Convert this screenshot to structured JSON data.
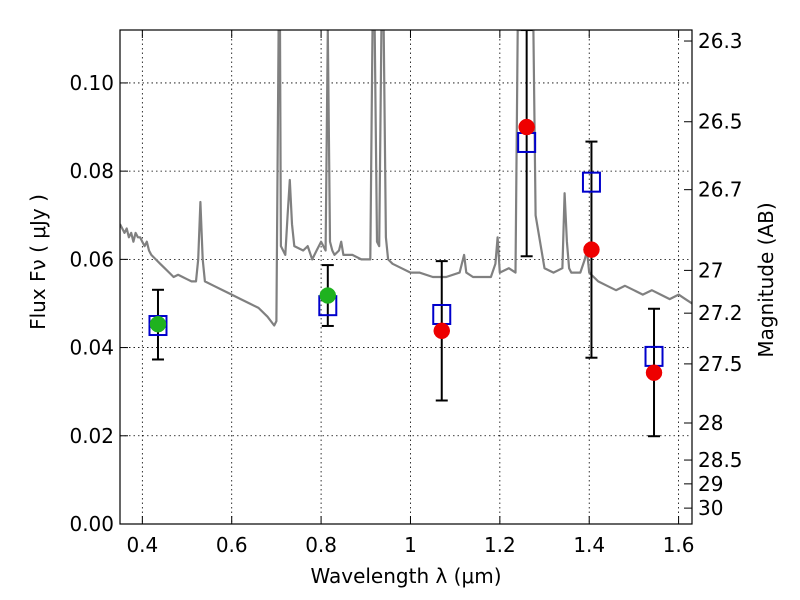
{
  "chart_data": {
    "type": "scatter",
    "title": "",
    "xlabel": "Wavelength  λ (μm)",
    "ylabel": "Flux  Fν  ( μJy )",
    "ylabel_right": "Magnitude (AB)",
    "xlim": [
      0.35,
      1.63
    ],
    "ylim": [
      0.0,
      0.112
    ],
    "grid": true,
    "x_ticks": [
      0.4,
      0.6,
      0.8,
      1.0,
      1.2,
      1.4,
      1.6
    ],
    "x_tick_labels": [
      "0.4",
      "0.6",
      "0.8",
      "1",
      "1.2",
      "1.4",
      "1.6"
    ],
    "y_ticks": [
      0.0,
      0.02,
      0.04,
      0.06,
      0.08,
      0.1
    ],
    "y_tick_labels": [
      "0.00",
      "0.02",
      "0.04",
      "0.06",
      "0.08",
      "0.10"
    ],
    "right_ticks": [
      {
        "flux": 0.1095,
        "label": "26.3"
      },
      {
        "flux": 0.0912,
        "label": "26.5"
      },
      {
        "flux": 0.0758,
        "label": "26.7"
      },
      {
        "flux": 0.0575,
        "label": "27"
      },
      {
        "flux": 0.0478,
        "label": "27.2"
      },
      {
        "flux": 0.0363,
        "label": "27.5"
      },
      {
        "flux": 0.0229,
        "label": "28"
      },
      {
        "flux": 0.0145,
        "label": "28.5"
      },
      {
        "flux": 0.0091,
        "label": "29"
      },
      {
        "flux": 0.0036,
        "label": "30"
      }
    ],
    "series": [
      {
        "name": "model spectrum",
        "kind": "line",
        "color": "#808080",
        "x": [
          0.35,
          0.36,
          0.365,
          0.37,
          0.375,
          0.38,
          0.385,
          0.39,
          0.395,
          0.4,
          0.405,
          0.41,
          0.415,
          0.42,
          0.43,
          0.44,
          0.45,
          0.46,
          0.47,
          0.48,
          0.49,
          0.5,
          0.51,
          0.52,
          0.525,
          0.53,
          0.535,
          0.54,
          0.56,
          0.58,
          0.6,
          0.62,
          0.64,
          0.66,
          0.68,
          0.695,
          0.7,
          0.705,
          0.708,
          0.71,
          0.72,
          0.725,
          0.73,
          0.735,
          0.74,
          0.76,
          0.77,
          0.78,
          0.79,
          0.8,
          0.81,
          0.815,
          0.82,
          0.825,
          0.83,
          0.84,
          0.845,
          0.85,
          0.87,
          0.89,
          0.91,
          0.915,
          0.92,
          0.925,
          0.93,
          0.935,
          0.94,
          0.945,
          0.95,
          0.96,
          0.98,
          1.0,
          1.02,
          1.05,
          1.08,
          1.11,
          1.12,
          1.125,
          1.14,
          1.16,
          1.18,
          1.19,
          1.195,
          1.2,
          1.22,
          1.235,
          1.24,
          1.245,
          1.25,
          1.26,
          1.265,
          1.27,
          1.275,
          1.28,
          1.3,
          1.32,
          1.34,
          1.345,
          1.35,
          1.355,
          1.36,
          1.38,
          1.39,
          1.395,
          1.4,
          1.42,
          1.44,
          1.46,
          1.48,
          1.5,
          1.52,
          1.54,
          1.56,
          1.58,
          1.6,
          1.615,
          1.63
        ],
        "values": [
          0.068,
          0.066,
          0.067,
          0.065,
          0.066,
          0.064,
          0.066,
          0.065,
          0.065,
          0.064,
          0.063,
          0.064,
          0.062,
          0.061,
          0.06,
          0.059,
          0.058,
          0.057,
          0.056,
          0.0565,
          0.056,
          0.0555,
          0.055,
          0.055,
          0.06,
          0.073,
          0.06,
          0.055,
          0.054,
          0.053,
          0.052,
          0.051,
          0.05,
          0.049,
          0.047,
          0.045,
          0.046,
          0.112,
          0.112,
          0.063,
          0.061,
          0.07,
          0.078,
          0.068,
          0.063,
          0.062,
          0.063,
          0.06,
          0.062,
          0.064,
          0.062,
          0.112,
          0.064,
          0.062,
          0.061,
          0.062,
          0.064,
          0.061,
          0.061,
          0.06,
          0.06,
          0.112,
          0.112,
          0.064,
          0.063,
          0.112,
          0.112,
          0.065,
          0.06,
          0.059,
          0.058,
          0.057,
          0.057,
          0.056,
          0.056,
          0.057,
          0.061,
          0.057,
          0.056,
          0.056,
          0.056,
          0.059,
          0.065,
          0.057,
          0.058,
          0.057,
          0.112,
          0.112,
          0.112,
          0.112,
          0.112,
          0.112,
          0.112,
          0.07,
          0.058,
          0.057,
          0.058,
          0.075,
          0.064,
          0.058,
          0.057,
          0.057,
          0.06,
          0.062,
          0.057,
          0.055,
          0.054,
          0.053,
          0.054,
          0.053,
          0.052,
          0.053,
          0.052,
          0.051,
          0.052,
          0.051,
          0.05
        ]
      },
      {
        "name": "model band flux",
        "kind": "open-square",
        "color": "#0000cc",
        "x": [
          0.435,
          0.815,
          1.07,
          1.26,
          1.405,
          1.545
        ],
        "values": [
          0.045,
          0.0495,
          0.0475,
          0.0865,
          0.0775,
          0.038
        ]
      },
      {
        "name": "observed (green)",
        "kind": "dot",
        "color": "#1fb21f",
        "x": [
          0.435,
          0.815
        ],
        "values": [
          0.0453,
          0.0518
        ]
      },
      {
        "name": "observed (red)",
        "kind": "dot",
        "color": "#ee0000",
        "x": [
          1.07,
          1.26,
          1.405,
          1.545
        ],
        "values": [
          0.0438,
          0.09,
          0.0622,
          0.0343
        ]
      },
      {
        "name": "error bars",
        "kind": "errorbar",
        "color": "#000000",
        "x": [
          0.435,
          0.815,
          1.07,
          1.26,
          1.405,
          1.545
        ],
        "low": [
          0.0373,
          0.0449,
          0.028,
          0.0607,
          0.0377,
          0.0199
        ],
        "high": [
          0.0531,
          0.0587,
          0.0596,
          0.112,
          0.0867,
          0.0488
        ]
      }
    ]
  }
}
